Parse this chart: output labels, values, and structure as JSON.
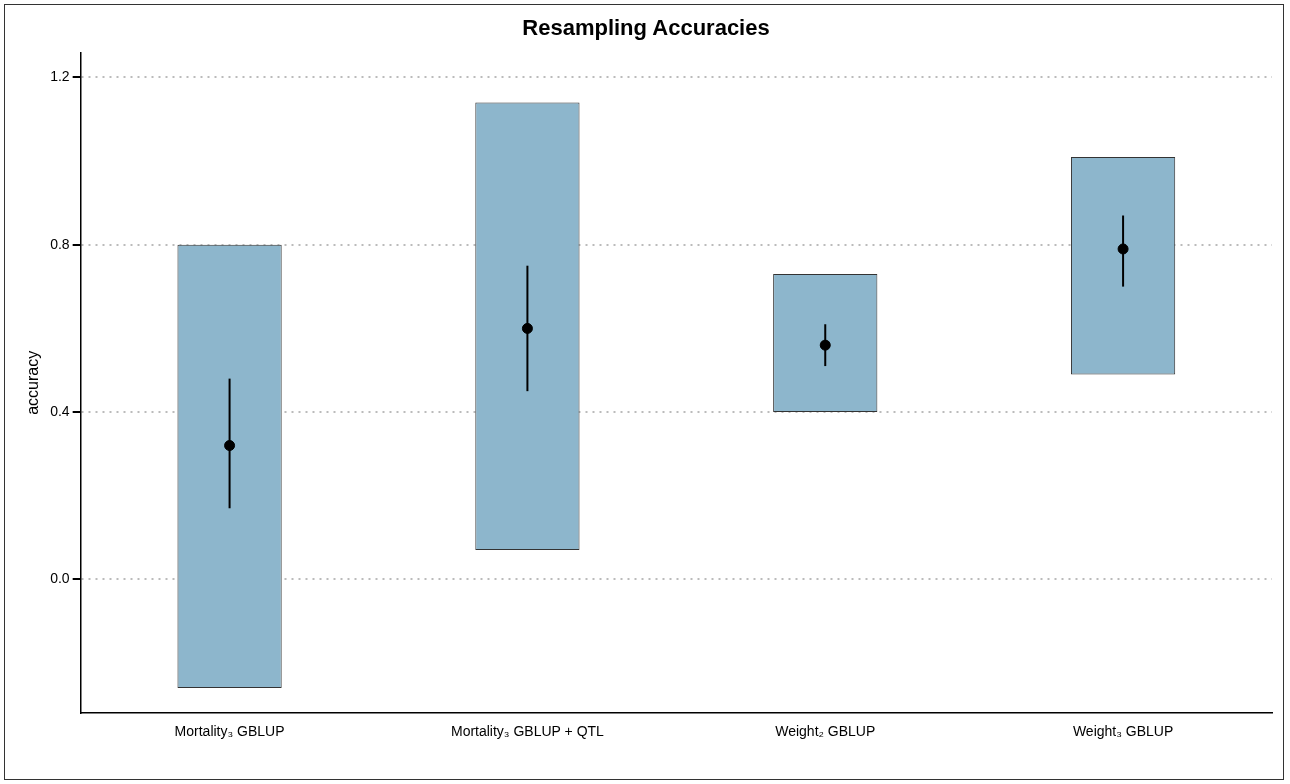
{
  "chart_data": {
    "type": "bar",
    "title": "Resampling Accuracies",
    "ylabel": "accuracy",
    "categories": [
      "Mortality₃ GBLUP",
      "Mortality₃ GBLUP + QTL",
      "Weight₂ GBLUP",
      "Weight₃ GBLUP"
    ],
    "series": [
      {
        "type": "bar",
        "color": "#8db6cc",
        "base": [
          -0.26,
          0.07,
          0.4,
          0.49
        ],
        "values": [
          1.06,
          1.07,
          0.33,
          0.52
        ]
      },
      {
        "type": "scatter",
        "color": "#000000",
        "x": [
          "Mortality₃ GBLUP",
          "Mortality₃ GBLUP + QTL",
          "Weight₂ GBLUP",
          "Weight₃ GBLUP"
        ],
        "values": [
          0.32,
          0.6,
          0.56,
          0.79
        ],
        "errors": [
          [
            0.17,
            0.48
          ],
          [
            0.45,
            0.75
          ],
          [
            0.51,
            0.61
          ],
          [
            0.7,
            0.87
          ]
        ]
      }
    ],
    "ylim": [
      -0.32,
      1.26
    ],
    "yticks": [
      {
        "value": 0,
        "label": "0.0"
      },
      {
        "value": 0.4,
        "label": "0.4"
      },
      {
        "value": 0.8,
        "label": "0.8"
      },
      {
        "value": 1.2,
        "label": "1.2"
      }
    ],
    "grid": "y",
    "marker": "circle",
    "legend": false
  }
}
